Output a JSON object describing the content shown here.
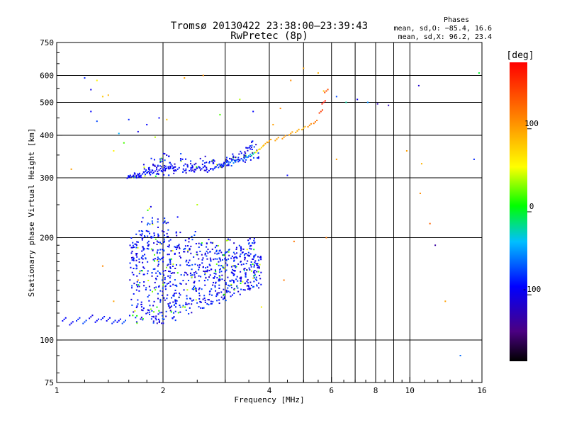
{
  "chart_data": {
    "type": "scatter",
    "title": "Tromsø 20130422 23:38:00–23:39:43",
    "subtitle": "RwPretec (8p)",
    "xlabel": "Frequency [MHz]",
    "ylabel": "Stationary phase Virtual Height [km]",
    "x_scale": "log",
    "y_scale": "log",
    "xlim": [
      1,
      16
    ],
    "ylim": [
      75,
      750
    ],
    "x_ticks": [
      1,
      2,
      4,
      6,
      8,
      10,
      16
    ],
    "y_ticks": [
      75,
      100,
      200,
      300,
      400,
      500,
      600,
      750
    ],
    "grid": true,
    "stats": {
      "heading": "Phases",
      "line1": "mean, sd,O: −85.4, 16.6",
      "line2": "mean, sd,X:  96.2, 23.4"
    },
    "colorbar": {
      "label": "[deg]",
      "range": [
        -180,
        180
      ],
      "ticks": [
        100,
        0,
        -100
      ]
    },
    "series": [
      {
        "x": [
          1.05,
          1.1,
          1.15,
          1.2,
          1.25,
          1.3,
          1.35,
          1.4,
          1.45,
          1.5,
          1.55,
          1.6,
          1.65,
          1.7,
          1.75,
          1.8,
          1.85,
          1.9,
          1.95,
          2.0,
          2.05,
          2.1,
          2.2,
          2.3,
          2.4,
          2.5,
          2.6,
          2.7,
          2.8,
          2.9,
          3.0,
          3.1,
          3.2,
          3.3,
          3.4,
          3.5,
          3.6,
          3.7,
          3.8,
          3.9,
          4.0,
          4.2,
          4.4,
          4.6,
          4.8,
          5.0,
          5.2,
          5.4,
          5.6,
          5.7,
          5.8
        ],
        "y": [
          115,
          112,
          115,
          113,
          117,
          114,
          116,
          115,
          113,
          114,
          113,
          302,
          305,
          306,
          308,
          310,
          312,
          314,
          316,
          318,
          320,
          322,
          318,
          315,
          318,
          320,
          322,
          315,
          320,
          325,
          330,
          333,
          335,
          338,
          342,
          348,
          352,
          360,
          368,
          378,
          385,
          390,
          395,
          405,
          412,
          420,
          428,
          438,
          470,
          500,
          540
        ],
        "phase": [
          -90,
          -95,
          -80,
          -70,
          -100,
          -90,
          -85,
          -95,
          -80,
          -90,
          -70,
          -95,
          -100,
          -90,
          -85,
          -80,
          -90,
          -95,
          -100,
          -85,
          -90,
          -95,
          -85,
          -80,
          -90,
          -95,
          -85,
          -90,
          -80,
          -75,
          -70,
          -60,
          -50,
          -80,
          -60,
          -40,
          -20,
          60,
          80,
          95,
          100,
          100,
          105,
          100,
          95,
          90,
          110,
          120,
          150,
          170,
          140
        ]
      }
    ],
    "scattered_points": {
      "x": [
        1.2,
        1.25,
        1.3,
        1.35,
        1.4,
        1.1,
        1.25,
        1.3,
        1.5,
        1.55,
        1.45,
        1.6,
        1.7,
        1.8,
        1.9,
        1.95,
        2.05,
        2.3,
        2.6,
        2.9,
        3.3,
        3.6,
        4.1,
        4.3,
        4.6,
        5.0,
        5.5,
        5.7,
        6.2,
        6.6,
        7.1,
        7.6,
        8.1,
        8.7,
        9.8,
        10.6,
        10.8,
        11.4,
        11.8,
        12.6,
        13.9,
        15.2,
        15.7,
        1.35,
        1.45,
        1.7,
        2.0,
        2.2,
        2.5,
        3.0,
        3.4,
        3.8,
        4.4,
        4.5,
        4.7,
        5.8,
        6.2,
        10.7
      ],
      "y": [
        590,
        545,
        580,
        520,
        525,
        318,
        470,
        440,
        405,
        380,
        360,
        445,
        410,
        430,
        395,
        450,
        445,
        590,
        600,
        460,
        510,
        470,
        430,
        480,
        580,
        630,
        610,
        540,
        520,
        500,
        510,
        500,
        495,
        490,
        360,
        560,
        330,
        220,
        190,
        130,
        90,
        340,
        610,
        165,
        130,
        150,
        170,
        230,
        250,
        180,
        160,
        125,
        150,
        305,
        195,
        200,
        340,
        270
      ],
      "phase": [
        -80,
        -100,
        60,
        80,
        90,
        100,
        -90,
        -70,
        -40,
        20,
        60,
        -80,
        -100,
        -90,
        40,
        -90,
        80,
        100,
        110,
        20,
        40,
        -90,
        100,
        110,
        110,
        100,
        90,
        80,
        -70,
        -20,
        -100,
        -50,
        -120,
        -120,
        100,
        -110,
        90,
        130,
        -130,
        100,
        -60,
        -80,
        0,
        110,
        100,
        110,
        -90,
        -90,
        40,
        -80,
        -40,
        60,
        120,
        -90,
        120,
        120,
        100,
        110
      ]
    },
    "f_layer_cloud": {
      "columns_x": [
        1.65,
        1.72,
        1.78,
        1.85,
        1.92,
        1.98,
        2.05,
        2.12,
        2.2,
        2.33,
        2.45,
        2.58,
        2.7,
        2.83,
        2.95,
        3.1,
        3.25,
        3.4,
        3.55,
        3.7
      ],
      "top_y": [
        200,
        210,
        230,
        250,
        210,
        235,
        225,
        190,
        210,
        200,
        210,
        195,
        200,
        190,
        185,
        200,
        190,
        190,
        200,
        180
      ],
      "bottom_y": [
        113,
        112,
        112,
        111,
        111,
        112,
        113,
        114,
        115,
        118,
        120,
        123,
        125,
        128,
        130,
        133,
        136,
        138,
        140,
        142
      ],
      "phase": -90
    },
    "f2_layer_cloud": {
      "columns_x": [
        1.62,
        1.7,
        1.8,
        1.9,
        1.98,
        2.05,
        2.12,
        2.3,
        2.45,
        2.6,
        2.75,
        2.9,
        3.05,
        3.2,
        3.35,
        3.5,
        3.65
      ],
      "top_y": [
        305,
        310,
        330,
        345,
        360,
        350,
        335,
        355,
        345,
        350,
        340,
        330,
        345,
        355,
        365,
        375,
        385
      ],
      "bottom_y": [
        300,
        300,
        300,
        300,
        302,
        305,
        308,
        310,
        312,
        315,
        318,
        322,
        325,
        328,
        332,
        336,
        342
      ],
      "phase": -95
    }
  }
}
